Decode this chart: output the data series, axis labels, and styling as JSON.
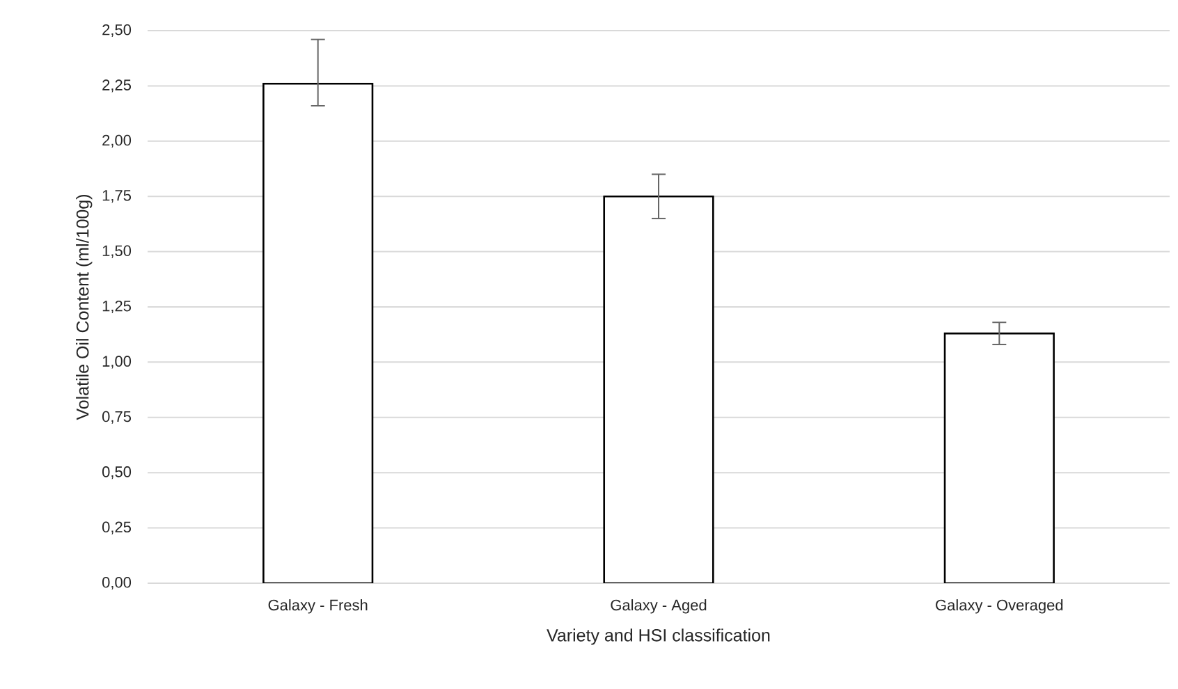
{
  "chart_data": {
    "type": "bar",
    "xlabel": "Variety and HSI classification",
    "ylabel": "Volatile Oil Content (ml/100g)",
    "categories": [
      "Galaxy - Fresh",
      "Galaxy -  Aged",
      "Galaxy - Overaged"
    ],
    "values": [
      2.26,
      1.75,
      1.13
    ],
    "errors": [
      [
        2.16,
        2.46
      ],
      0.1,
      0.05
    ],
    "color": "#ffffff",
    "ylim": [
      0,
      2.5
    ],
    "yticks": [
      {
        "value": 0,
        "label": "0,00"
      },
      {
        "value": 0.25,
        "label": "0,25"
      },
      {
        "value": 0.5,
        "label": "0,50"
      },
      {
        "value": 0.75,
        "label": "0,75"
      },
      {
        "value": 1.0,
        "label": "1,00"
      },
      {
        "value": 1.25,
        "label": "1,25"
      },
      {
        "value": 1.5,
        "label": "1,50"
      },
      {
        "value": 1.75,
        "label": "1,75"
      },
      {
        "value": 2.0,
        "label": "2,00"
      },
      {
        "value": 2.25,
        "label": "2,25"
      },
      {
        "value": 2.5,
        "label": "2,50"
      }
    ],
    "grid": "y"
  }
}
